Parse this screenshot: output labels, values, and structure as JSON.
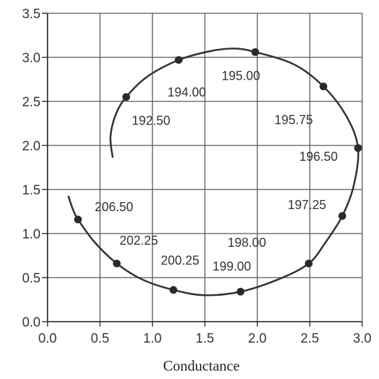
{
  "chart_data": {
    "type": "line",
    "xlabel": "Conductance",
    "ylabel": "",
    "xlim": [
      0.0,
      3.0
    ],
    "ylim": [
      0.0,
      3.5
    ],
    "grid": true,
    "x_ticks": [
      "0.0",
      "0.5",
      "1.0",
      "1.5",
      "2.0",
      "2.5",
      "3.0"
    ],
    "y_ticks": [
      "0.0",
      "0.5",
      "1.0",
      "1.5",
      "2.0",
      "2.5",
      "3.0",
      "3.5"
    ],
    "curve": [
      {
        "x": 0.62,
        "y": 1.87
      },
      {
        "x": 0.6,
        "y": 2.1
      },
      {
        "x": 0.65,
        "y": 2.35
      },
      {
        "x": 0.75,
        "y": 2.55
      },
      {
        "x": 0.95,
        "y": 2.78
      },
      {
        "x": 1.25,
        "y": 2.97
      },
      {
        "x": 1.55,
        "y": 3.07
      },
      {
        "x": 1.78,
        "y": 3.1
      },
      {
        "x": 1.98,
        "y": 3.06
      },
      {
        "x": 2.35,
        "y": 2.92
      },
      {
        "x": 2.63,
        "y": 2.67
      },
      {
        "x": 2.85,
        "y": 2.33
      },
      {
        "x": 2.96,
        "y": 1.97
      },
      {
        "x": 2.92,
        "y": 1.55
      },
      {
        "x": 2.81,
        "y": 1.2
      },
      {
        "x": 2.65,
        "y": 0.9
      },
      {
        "x": 2.49,
        "y": 0.66
      },
      {
        "x": 2.2,
        "y": 0.48
      },
      {
        "x": 1.84,
        "y": 0.34
      },
      {
        "x": 1.5,
        "y": 0.3
      },
      {
        "x": 1.2,
        "y": 0.36
      },
      {
        "x": 0.9,
        "y": 0.48
      },
      {
        "x": 0.66,
        "y": 0.66
      },
      {
        "x": 0.45,
        "y": 0.9
      },
      {
        "x": 0.29,
        "y": 1.16
      },
      {
        "x": 0.24,
        "y": 1.28
      },
      {
        "x": 0.2,
        "y": 1.42
      }
    ],
    "points": [
      {
        "x": 0.75,
        "y": 2.55,
        "label": "192.50"
      },
      {
        "x": 1.25,
        "y": 2.97,
        "label": "194.00"
      },
      {
        "x": 1.98,
        "y": 3.06,
        "label": "195.00"
      },
      {
        "x": 2.63,
        "y": 2.67,
        "label": "195.75"
      },
      {
        "x": 2.96,
        "y": 1.97,
        "label": "196.50"
      },
      {
        "x": 2.81,
        "y": 1.2,
        "label": "197.25"
      },
      {
        "x": 2.49,
        "y": 0.66,
        "label": "198.00"
      },
      {
        "x": 1.84,
        "y": 0.34,
        "label": "199.00"
      },
      {
        "x": 1.2,
        "y": 0.36,
        "label": "200.25"
      },
      {
        "x": 0.66,
        "y": 0.66,
        "label": "202.25"
      },
      {
        "x": 0.29,
        "y": 1.16,
        "label": "206.50"
      }
    ]
  }
}
